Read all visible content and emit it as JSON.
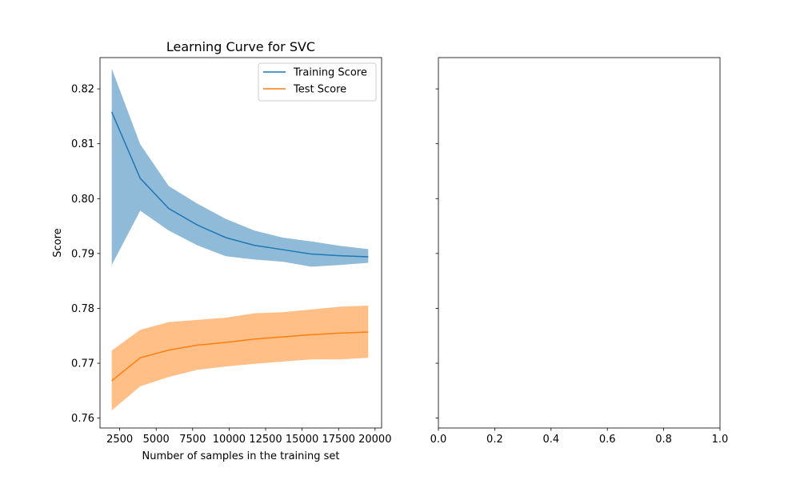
{
  "chart_data": [
    {
      "type": "line",
      "title": "Learning Curve for SVC",
      "xlabel": "Number of samples in the training set",
      "ylabel": "Score",
      "xlim": [
        1150,
        20450
      ],
      "ylim": [
        0.7582,
        0.8257
      ],
      "xticks": [
        2500,
        5000,
        7500,
        10000,
        12500,
        15000,
        17500,
        20000
      ],
      "xtick_labels": [
        "2500",
        "5000",
        "7500",
        "10000",
        "12500",
        "15000",
        "17500",
        "20000"
      ],
      "yticks": [
        0.76,
        0.77,
        0.78,
        0.79,
        0.8,
        0.81,
        0.82
      ],
      "ytick_labels": [
        "0.76",
        "0.77",
        "0.78",
        "0.79",
        "0.80",
        "0.81",
        "0.82"
      ],
      "grid": false,
      "legend_position": "upper right",
      "x": [
        1953,
        3907,
        5860,
        7814,
        9767,
        11721,
        13674,
        15628,
        17581,
        19535
      ],
      "series": [
        {
          "name": "Training Score",
          "color": "#1f77b4",
          "fill_color": "#1f77b4",
          "values": [
            0.8158,
            0.8037,
            0.7982,
            0.7952,
            0.7929,
            0.7915,
            0.7907,
            0.7899,
            0.7896,
            0.7894
          ],
          "lower": [
            0.7879,
            0.7978,
            0.7942,
            0.7915,
            0.7895,
            0.7889,
            0.7885,
            0.7876,
            0.7879,
            0.7883
          ],
          "upper": [
            0.8237,
            0.8099,
            0.8023,
            0.7991,
            0.7963,
            0.7942,
            0.7929,
            0.7922,
            0.7914,
            0.7908
          ]
        },
        {
          "name": "Test Score",
          "color": "#ff7f0e",
          "fill_color": "#ff7f0e",
          "values": [
            0.7668,
            0.771,
            0.7724,
            0.7733,
            0.7738,
            0.7744,
            0.7748,
            0.7752,
            0.7755,
            0.7757
          ],
          "lower": [
            0.7614,
            0.7658,
            0.7675,
            0.7688,
            0.7694,
            0.7699,
            0.7703,
            0.7707,
            0.7707,
            0.771
          ],
          "upper": [
            0.7723,
            0.7761,
            0.7775,
            0.7779,
            0.7783,
            0.7791,
            0.7793,
            0.7798,
            0.7803,
            0.7805
          ]
        }
      ]
    },
    {
      "type": "line",
      "title": "",
      "xlabel": "",
      "ylabel": "",
      "xlim": [
        0,
        1
      ],
      "xticks": [
        0.0,
        0.2,
        0.4,
        0.6,
        0.8,
        1.0
      ],
      "xtick_labels": [
        "0.0",
        "0.2",
        "0.4",
        "0.6",
        "0.8",
        "1.0"
      ],
      "shared_y": true,
      "grid": false,
      "series": []
    }
  ]
}
